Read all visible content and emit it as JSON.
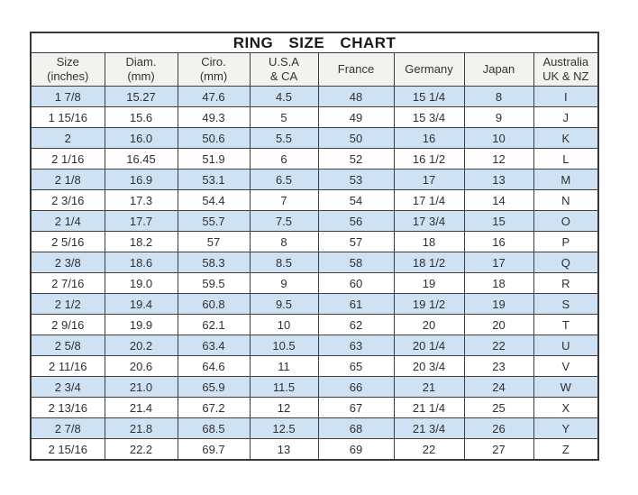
{
  "chart_data": {
    "type": "table",
    "title": "RING SIZE CHART",
    "columns": [
      "Size (inches)",
      "Diam. (mm)",
      "Ciro. (mm)",
      "U.S.A & CA",
      "France",
      "Germany",
      "Japan",
      "Australia UK & NZ"
    ],
    "rows": [
      [
        "1 7/8",
        "15.27",
        "47.6",
        "4.5",
        "48",
        "15 1/4",
        "8",
        "I"
      ],
      [
        "1 15/16",
        "15.6",
        "49.3",
        "5",
        "49",
        "15 3/4",
        "9",
        "J"
      ],
      [
        "2",
        "16.0",
        "50.6",
        "5.5",
        "50",
        "16",
        "10",
        "K"
      ],
      [
        "2 1/16",
        "16.45",
        "51.9",
        "6",
        "52",
        "16 1/2",
        "12",
        "L"
      ],
      [
        "2 1/8",
        "16.9",
        "53.1",
        "6.5",
        "53",
        "17",
        "13",
        "M"
      ],
      [
        "2 3/16",
        "17.3",
        "54.4",
        "7",
        "54",
        "17 1/4",
        "14",
        "N"
      ],
      [
        "2 1/4",
        "17.7",
        "55.7",
        "7.5",
        "56",
        "17 3/4",
        "15",
        "O"
      ],
      [
        "2 5/16",
        "18.2",
        "57",
        "8",
        "57",
        "18",
        "16",
        "P"
      ],
      [
        "2 3/8",
        "18.6",
        "58.3",
        "8.5",
        "58",
        "18 1/2",
        "17",
        "Q"
      ],
      [
        "2 7/16",
        "19.0",
        "59.5",
        "9",
        "60",
        "19",
        "18",
        "R"
      ],
      [
        "2 1/2",
        "19.4",
        "60.8",
        "9.5",
        "61",
        "19 1/2",
        "19",
        "S"
      ],
      [
        "2 9/16",
        "19.9",
        "62.1",
        "10",
        "62",
        "20",
        "20",
        "T"
      ],
      [
        "2 5/8",
        "20.2",
        "63.4",
        "10.5",
        "63",
        "20 1/4",
        "22",
        "U"
      ],
      [
        "2 11/16",
        "20.6",
        "64.6",
        "11",
        "65",
        "20 3/4",
        "23",
        "V"
      ],
      [
        "2 3/4",
        "21.0",
        "65.9",
        "11.5",
        "66",
        "21",
        "24",
        "W"
      ],
      [
        "2 13/16",
        "21.4",
        "67.2",
        "12",
        "67",
        "21 1/4",
        "25",
        "X"
      ],
      [
        "2 7/8",
        "21.8",
        "68.5",
        "12.5",
        "68",
        "21 3/4",
        "26",
        "Y"
      ],
      [
        "2 15/16",
        "22.2",
        "69.7",
        "13",
        "69",
        "22",
        "27",
        "Z"
      ]
    ],
    "layout": {
      "row_striping": "odd rows light blue, even rows white",
      "grid": true,
      "legend": "none"
    }
  },
  "header": {
    "columns": [
      {
        "line1": "Size",
        "line2": "(inches)"
      },
      {
        "line1": "Diam.",
        "line2": "(mm)"
      },
      {
        "line1": "Ciro.",
        "line2": "(mm)"
      },
      {
        "line1": "U.S.A",
        "line2": "& CA"
      },
      {
        "line1": "France",
        "line2": ""
      },
      {
        "line1": "Germany",
        "line2": ""
      },
      {
        "line1": "Japan",
        "line2": ""
      },
      {
        "line1": "Australia",
        "line2": "UK & NZ"
      }
    ]
  },
  "colors": {
    "row_alt_blue": "#cfe2f4",
    "row_white": "#ffffff",
    "header_bg": "#f2f2ef",
    "border": "#3d3d3d",
    "text": "#2f2f2f",
    "page_bg": "#ffffff"
  }
}
